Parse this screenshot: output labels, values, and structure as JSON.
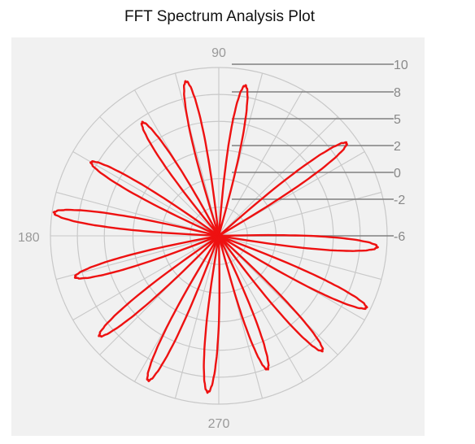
{
  "title": "FFT Spectrum Analysis Plot",
  "chart_data": {
    "type": "polar-line",
    "title": "FFT Spectrum Analysis Plot",
    "angle_labels": [
      "90",
      "180",
      "270"
    ],
    "radial_ticks": [
      "10",
      "8",
      "5",
      "2",
      "0",
      "-2",
      "-6"
    ],
    "radial_range": [
      -6,
      10
    ],
    "grid": true,
    "series": [
      {
        "petals": 14,
        "peak_angles_deg": [
          80,
          102,
          124,
          150,
          172,
          196,
          220,
          244,
          266,
          290,
          312,
          334,
          356,
          36
        ],
        "peak_values": [
          8.5,
          9.0,
          7.0,
          8.0,
          9.8,
          8.2,
          8.8,
          9.3,
          8.9,
          7.5,
          8.7,
          9.6,
          9.1,
          9.0
        ]
      }
    ]
  },
  "colors": {
    "series": "#ee1111",
    "grid": "#c8c8c8",
    "background": "#f1f1f1"
  }
}
